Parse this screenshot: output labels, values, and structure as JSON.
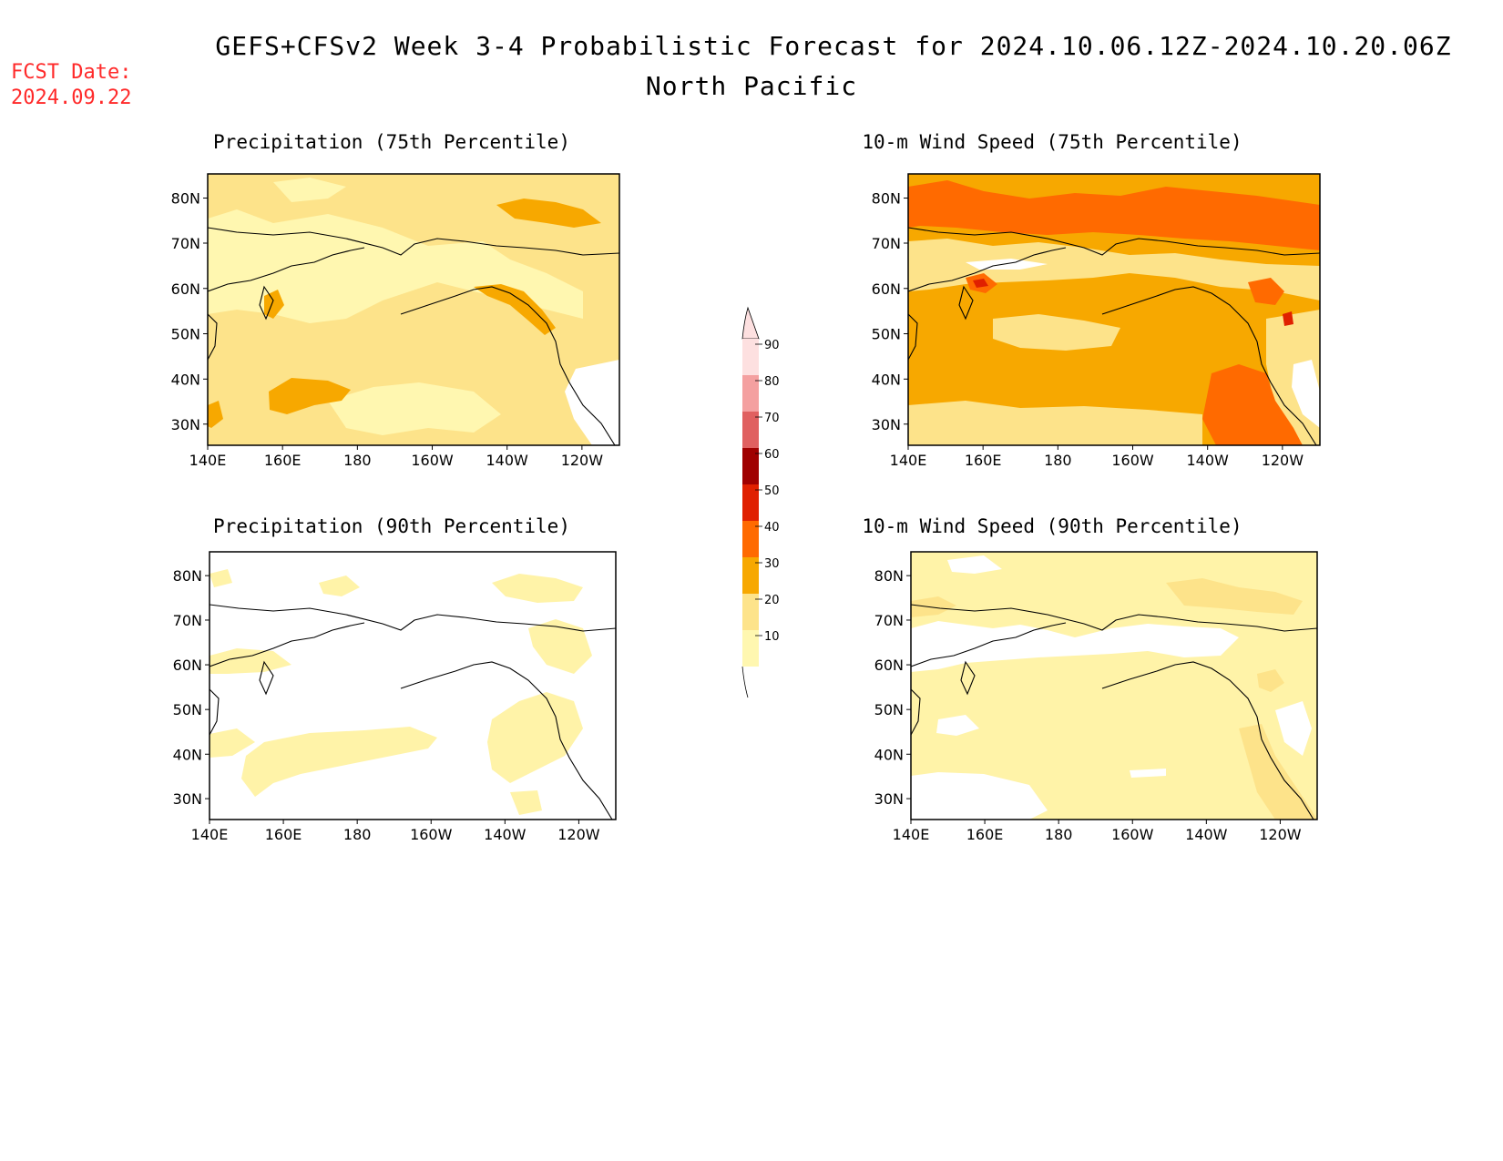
{
  "header": {
    "fcst_label": "FCST Date:",
    "fcst_date": "2024.09.22",
    "title": "GEFS+CFSv2 Week 3-4 Probabilistic Forecast for 2024.10.06.12Z-2024.10.20.06Z",
    "region": "North Pacific"
  },
  "panels": [
    {
      "id": "p75",
      "title": "Precipitation (75th Percentile)",
      "base_color": "#fde38a"
    },
    {
      "id": "w75",
      "title": "10-m Wind Speed (75th Percentile)",
      "base_color": "#f7a800"
    },
    {
      "id": "p90",
      "title": "Precipitation (90th Percentile)",
      "base_color": "#ffffff"
    },
    {
      "id": "w90",
      "title": "10-m Wind Speed (90th Percentile)",
      "base_color": "#fff3a8"
    }
  ],
  "axes": {
    "lon_labels": [
      "140E",
      "160E",
      "180",
      "160W",
      "140W",
      "120W"
    ],
    "lat_labels": [
      "80N",
      "70N",
      "60N",
      "50N",
      "40N",
      "30N"
    ]
  },
  "colorbar": {
    "levels": [
      "90",
      "80",
      "70",
      "60",
      "50",
      "40",
      "30",
      "20",
      "10"
    ],
    "colors": [
      "#fde0e0",
      "#f4a0a0",
      "#e06060",
      "#a00000",
      "#e02000",
      "#ff6a00",
      "#f7a800",
      "#fde38a",
      "#fff7b0"
    ]
  }
}
